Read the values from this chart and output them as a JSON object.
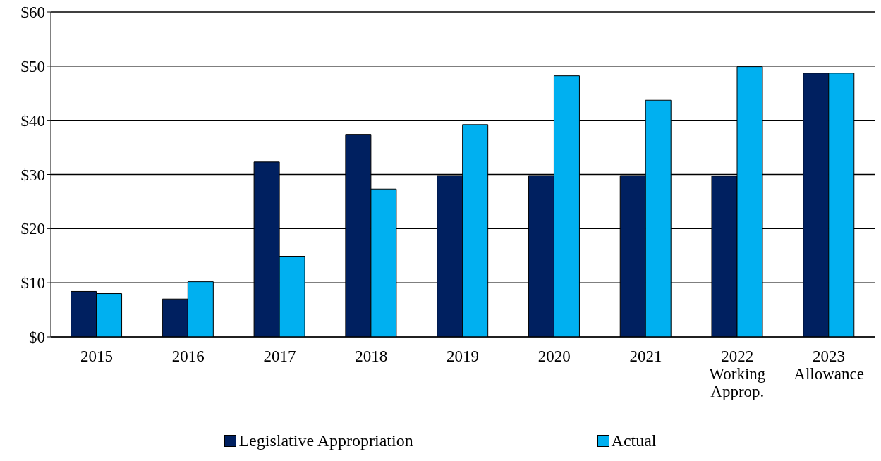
{
  "chart_data": {
    "type": "bar",
    "categories": [
      "2015",
      "2016",
      "2017",
      "2018",
      "2019",
      "2020",
      "2021",
      "2022\nWorking\nApprop.",
      "2023\nAllowance"
    ],
    "series": [
      {
        "name": "Legislative Appropriation",
        "color": "#002060",
        "values": [
          8.4,
          7.0,
          32.3,
          37.4,
          29.8,
          29.8,
          29.8,
          29.7,
          48.7
        ]
      },
      {
        "name": "Actual",
        "color": "#00b0f0",
        "values": [
          8.0,
          10.2,
          14.9,
          27.3,
          39.2,
          48.2,
          43.7,
          49.9,
          48.7
        ]
      }
    ],
    "ylim": [
      0,
      60
    ],
    "yticks": [
      {
        "value": 0,
        "label": "$0"
      },
      {
        "value": 10,
        "label": "$10"
      },
      {
        "value": 20,
        "label": "$20"
      },
      {
        "value": 30,
        "label": "$30"
      },
      {
        "value": 40,
        "label": "$40"
      },
      {
        "value": 50,
        "label": "$50"
      },
      {
        "value": 60,
        "label": "$60"
      }
    ],
    "grid": "y",
    "legend": "bottom"
  }
}
